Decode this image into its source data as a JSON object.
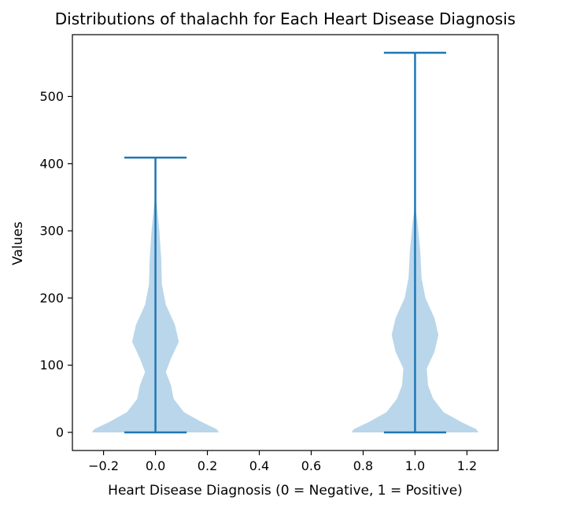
{
  "chart_data": {
    "type": "violin",
    "title": "Distributions of thalachh for Each Heart Disease Diagnosis",
    "xlabel": "Heart Disease Diagnosis (0 = Negative, 1 = Positive)",
    "ylabel": "Values",
    "xlim": [
      -0.32,
      1.32
    ],
    "ylim": [
      -27,
      592
    ],
    "x_ticks": [
      {
        "value": -0.2,
        "label": "−0.2"
      },
      {
        "value": 0.0,
        "label": "0.0"
      },
      {
        "value": 0.2,
        "label": "0.2"
      },
      {
        "value": 0.4,
        "label": "0.4"
      },
      {
        "value": 0.6,
        "label": "0.6"
      },
      {
        "value": 0.8,
        "label": "0.8"
      },
      {
        "value": 1.0,
        "label": "1.0"
      },
      {
        "value": 1.2,
        "label": "1.2"
      }
    ],
    "y_ticks": [
      {
        "value": 0,
        "label": "0"
      },
      {
        "value": 100,
        "label": "100"
      },
      {
        "value": 200,
        "label": "200"
      },
      {
        "value": 300,
        "label": "300"
      },
      {
        "value": 400,
        "label": "400"
      },
      {
        "value": 500,
        "label": "500"
      }
    ],
    "grid": false,
    "violin_color": "#bad6ea",
    "line_color": "#1f77b4",
    "violins": [
      {
        "position": 0,
        "min": 0,
        "max": 409,
        "profile": [
          {
            "y": 0,
            "half_width": 0.245
          },
          {
            "y": 5,
            "half_width": 0.235
          },
          {
            "y": 15,
            "half_width": 0.18
          },
          {
            "y": 30,
            "half_width": 0.11
          },
          {
            "y": 50,
            "half_width": 0.07
          },
          {
            "y": 70,
            "half_width": 0.06
          },
          {
            "y": 90,
            "half_width": 0.04
          },
          {
            "y": 110,
            "half_width": 0.06
          },
          {
            "y": 135,
            "half_width": 0.09
          },
          {
            "y": 160,
            "half_width": 0.075
          },
          {
            "y": 190,
            "half_width": 0.04
          },
          {
            "y": 220,
            "half_width": 0.025
          },
          {
            "y": 260,
            "half_width": 0.022
          },
          {
            "y": 300,
            "half_width": 0.015
          },
          {
            "y": 340,
            "half_width": 0.005
          },
          {
            "y": 350,
            "half_width": 0.0
          }
        ]
      },
      {
        "position": 1,
        "min": 0,
        "max": 565,
        "profile": [
          {
            "y": 0,
            "half_width": 0.245
          },
          {
            "y": 5,
            "half_width": 0.235
          },
          {
            "y": 15,
            "half_width": 0.18
          },
          {
            "y": 30,
            "half_width": 0.11
          },
          {
            "y": 50,
            "half_width": 0.07
          },
          {
            "y": 70,
            "half_width": 0.05
          },
          {
            "y": 95,
            "half_width": 0.045
          },
          {
            "y": 120,
            "half_width": 0.075
          },
          {
            "y": 145,
            "half_width": 0.09
          },
          {
            "y": 170,
            "half_width": 0.075
          },
          {
            "y": 200,
            "half_width": 0.04
          },
          {
            "y": 230,
            "half_width": 0.025
          },
          {
            "y": 270,
            "half_width": 0.02
          },
          {
            "y": 310,
            "half_width": 0.01
          },
          {
            "y": 340,
            "half_width": 0.0
          }
        ]
      }
    ]
  }
}
